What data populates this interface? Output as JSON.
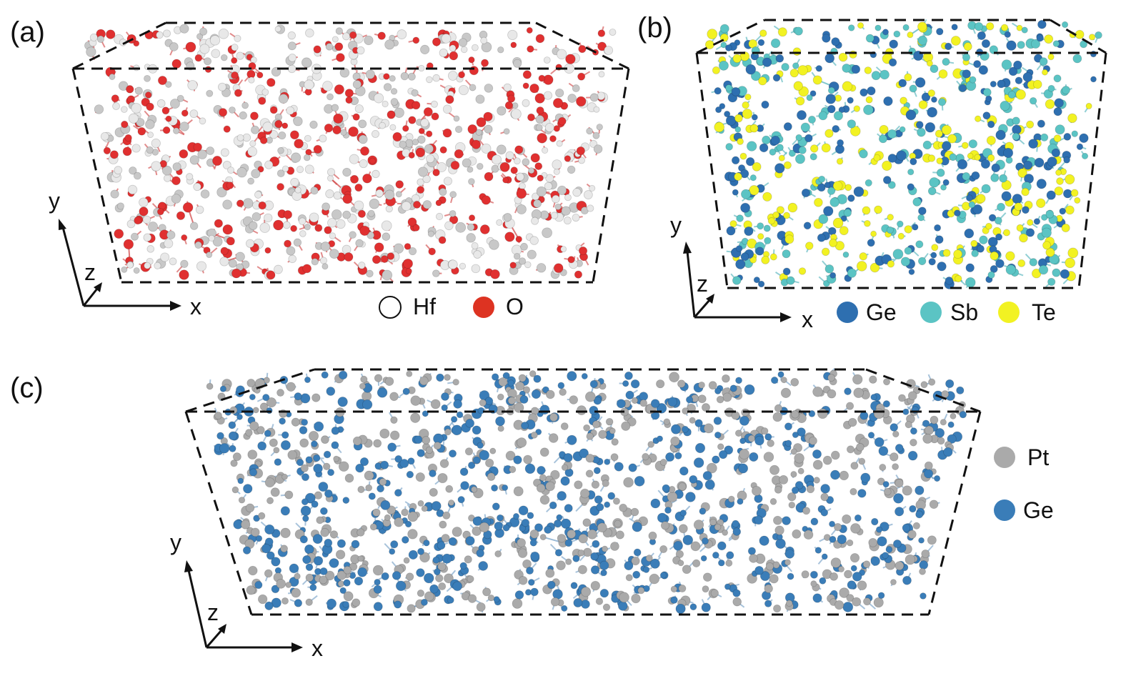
{
  "figure": {
    "panels": [
      {
        "id": "a",
        "label": "(a)",
        "axes": {
          "x": "x",
          "y": "y",
          "z": "z"
        },
        "legend": [
          {
            "symbol": "Hf",
            "color": "#ffffff",
            "outline": true
          },
          {
            "symbol": "O",
            "color": "#dd3322"
          }
        ],
        "atom_colors": [
          "#e03030",
          "#e8e8e8",
          "#c8c8c8"
        ],
        "bond_color": "#d04040"
      },
      {
        "id": "b",
        "label": "(b)",
        "axes": {
          "x": "x",
          "y": "y",
          "z": "z"
        },
        "legend": [
          {
            "symbol": "Ge",
            "color": "#2e6fb0"
          },
          {
            "symbol": "Sb",
            "color": "#5bc4c4"
          },
          {
            "symbol": "Te",
            "color": "#f2f222"
          }
        ],
        "atom_colors": [
          "#2e6fb0",
          "#5bc4c4",
          "#f2f222"
        ],
        "bond_color": "#4ab0b8"
      },
      {
        "id": "c",
        "label": "(c)",
        "axes": {
          "x": "x",
          "y": "y",
          "z": "z"
        },
        "legend": [
          {
            "symbol": "Pt",
            "color": "#aaaaaa"
          },
          {
            "symbol": "Ge",
            "color": "#3a7db8"
          }
        ],
        "atom_colors": [
          "#3a7db8",
          "#aaaaaa"
        ],
        "bond_color": "#6f9cc4"
      }
    ]
  }
}
